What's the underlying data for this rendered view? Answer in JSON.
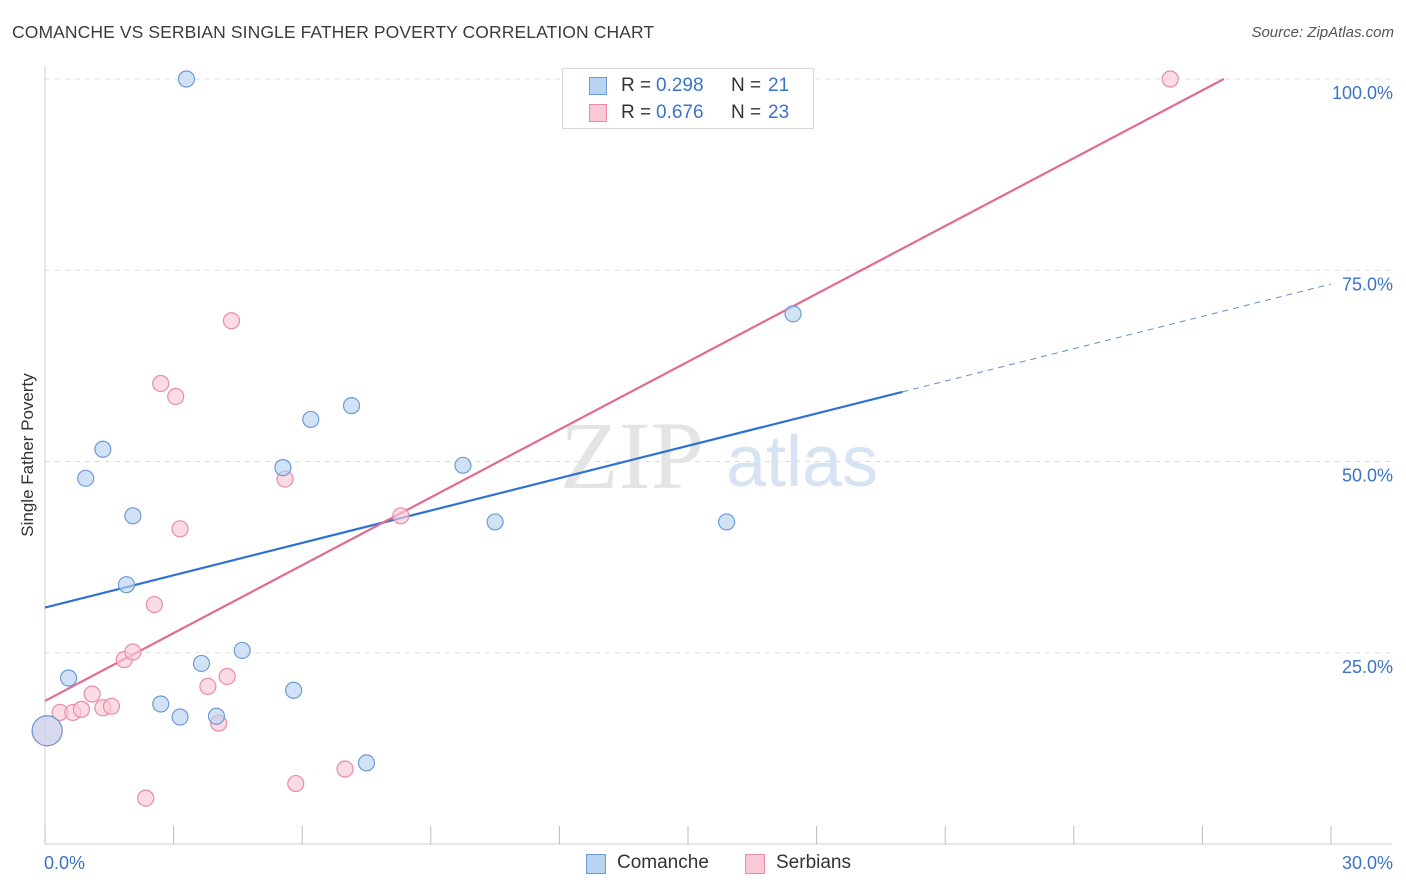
{
  "title": "COMANCHE VS SERBIAN SINGLE FATHER POVERTY CORRELATION CHART",
  "source": "Source: ZipAtlas.com",
  "watermark": {
    "zip": "ZIP",
    "atlas": "atlas"
  },
  "colors": {
    "comanche_fill": "#b9d3f2",
    "comanche_stroke": "#6c9bd6",
    "comanche_line": "#2f73d1",
    "serbian_fill": "#f9c9d6",
    "serbian_stroke": "#e98ba8",
    "serbian_line": "#e26a93",
    "axis_text": "#3b73c7",
    "grid": "#dddddd"
  },
  "legend": {
    "comanche": {
      "r_label": "R =",
      "r_value": "0.298",
      "n_label": "N =",
      "n_value": "21"
    },
    "serbian": {
      "r_label": "R =",
      "r_value": "0.676",
      "n_label": "N =",
      "n_value": "23"
    }
  },
  "bottom_legend": {
    "comanche": "Comanche",
    "serbian": "Serbians"
  },
  "chart_data": {
    "type": "scatter",
    "title": "COMANCHE VS SERBIAN SINGLE FATHER POVERTY CORRELATION CHART",
    "xlabel": "",
    "ylabel": "Single Father Poverty",
    "xlim": [
      0,
      30
    ],
    "ylim": [
      0,
      100
    ],
    "x_tick_labels": [
      "0.0%",
      "30.0%"
    ],
    "y_ticks": [
      25,
      50,
      75,
      100
    ],
    "y_tick_labels": [
      "25.0%",
      "50.0%",
      "75.0%",
      "100.0%"
    ],
    "grid": true,
    "series": [
      {
        "name": "Comanche",
        "points": [
          {
            "x": 0.05,
            "y": 14.8,
            "big": true
          },
          {
            "x": 0.55,
            "y": 21.7
          },
          {
            "x": 0.95,
            "y": 47.8
          },
          {
            "x": 1.35,
            "y": 51.6
          },
          {
            "x": 1.9,
            "y": 33.9
          },
          {
            "x": 2.05,
            "y": 42.9
          },
          {
            "x": 2.7,
            "y": 18.3
          },
          {
            "x": 3.15,
            "y": 16.6
          },
          {
            "x": 3.3,
            "y": 100.0
          },
          {
            "x": 3.65,
            "y": 23.6
          },
          {
            "x": 4.0,
            "y": 16.7
          },
          {
            "x": 4.6,
            "y": 25.3
          },
          {
            "x": 5.55,
            "y": 49.2
          },
          {
            "x": 5.8,
            "y": 20.1
          },
          {
            "x": 6.2,
            "y": 55.5
          },
          {
            "x": 7.15,
            "y": 57.3
          },
          {
            "x": 7.5,
            "y": 10.6
          },
          {
            "x": 9.75,
            "y": 49.5
          },
          {
            "x": 10.5,
            "y": 42.1
          },
          {
            "x": 15.9,
            "y": 42.1
          },
          {
            "x": 17.45,
            "y": 69.3
          }
        ],
        "trend": {
          "x0": 0,
          "y0": 30.9,
          "x_solid_end": 20.0,
          "x1": 30,
          "y1": 73.2
        }
      },
      {
        "name": "Serbians",
        "points": [
          {
            "x": 0.05,
            "y": 14.8,
            "big": true
          },
          {
            "x": 0.35,
            "y": 17.2
          },
          {
            "x": 0.65,
            "y": 17.2
          },
          {
            "x": 0.85,
            "y": 17.6
          },
          {
            "x": 1.1,
            "y": 19.6
          },
          {
            "x": 1.35,
            "y": 17.8
          },
          {
            "x": 1.55,
            "y": 18.0
          },
          {
            "x": 1.85,
            "y": 24.1
          },
          {
            "x": 2.05,
            "y": 25.1
          },
          {
            "x": 2.35,
            "y": 6.0
          },
          {
            "x": 2.55,
            "y": 31.3
          },
          {
            "x": 2.7,
            "y": 60.2
          },
          {
            "x": 3.05,
            "y": 58.5
          },
          {
            "x": 3.15,
            "y": 41.2
          },
          {
            "x": 3.8,
            "y": 20.6
          },
          {
            "x": 4.05,
            "y": 15.8
          },
          {
            "x": 4.25,
            "y": 21.9
          },
          {
            "x": 4.35,
            "y": 68.4
          },
          {
            "x": 5.6,
            "y": 47.7
          },
          {
            "x": 5.85,
            "y": 7.9
          },
          {
            "x": 7.0,
            "y": 9.8
          },
          {
            "x": 8.3,
            "y": 42.9
          },
          {
            "x": 26.25,
            "y": 100.0
          }
        ],
        "trend": {
          "x0": 0,
          "y0": 18.7,
          "x1": 27.5,
          "y1": 100.0
        }
      }
    ]
  }
}
